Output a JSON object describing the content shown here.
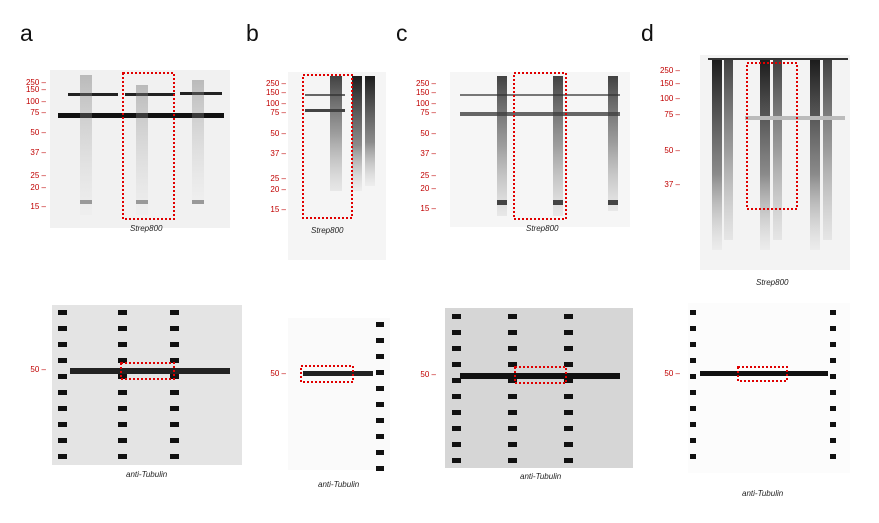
{
  "panels": [
    {
      "letter": "a",
      "top_caption": "Strep800",
      "bottom_caption": "anti-Tubulin",
      "markers_top": [
        "250",
        "150",
        "100",
        "75",
        "50",
        "37",
        "25",
        "20",
        "15"
      ],
      "markers_bottom": [
        "50"
      ]
    },
    {
      "letter": "b",
      "top_caption": "Strep800",
      "bottom_caption": "anti-Tubulin",
      "markers_top": [
        "250",
        "150",
        "100",
        "75",
        "50",
        "37",
        "25",
        "20",
        "15"
      ],
      "markers_bottom": [
        "50"
      ]
    },
    {
      "letter": "c",
      "top_caption": "Strep800",
      "bottom_caption": "anti-Tubulin",
      "markers_top": [
        "250",
        "150",
        "100",
        "75",
        "50",
        "37",
        "25",
        "20",
        "15"
      ],
      "markers_bottom": [
        "50"
      ]
    },
    {
      "letter": "d",
      "top_caption": "Strep800",
      "bottom_caption": "anti-Tubulin",
      "markers_top": [
        "250",
        "150",
        "100",
        "75",
        "50",
        "37"
      ],
      "markers_bottom": [
        "50"
      ]
    }
  ],
  "colors": {
    "marker_label": "#c00000",
    "highlight_box": "#e00000"
  }
}
